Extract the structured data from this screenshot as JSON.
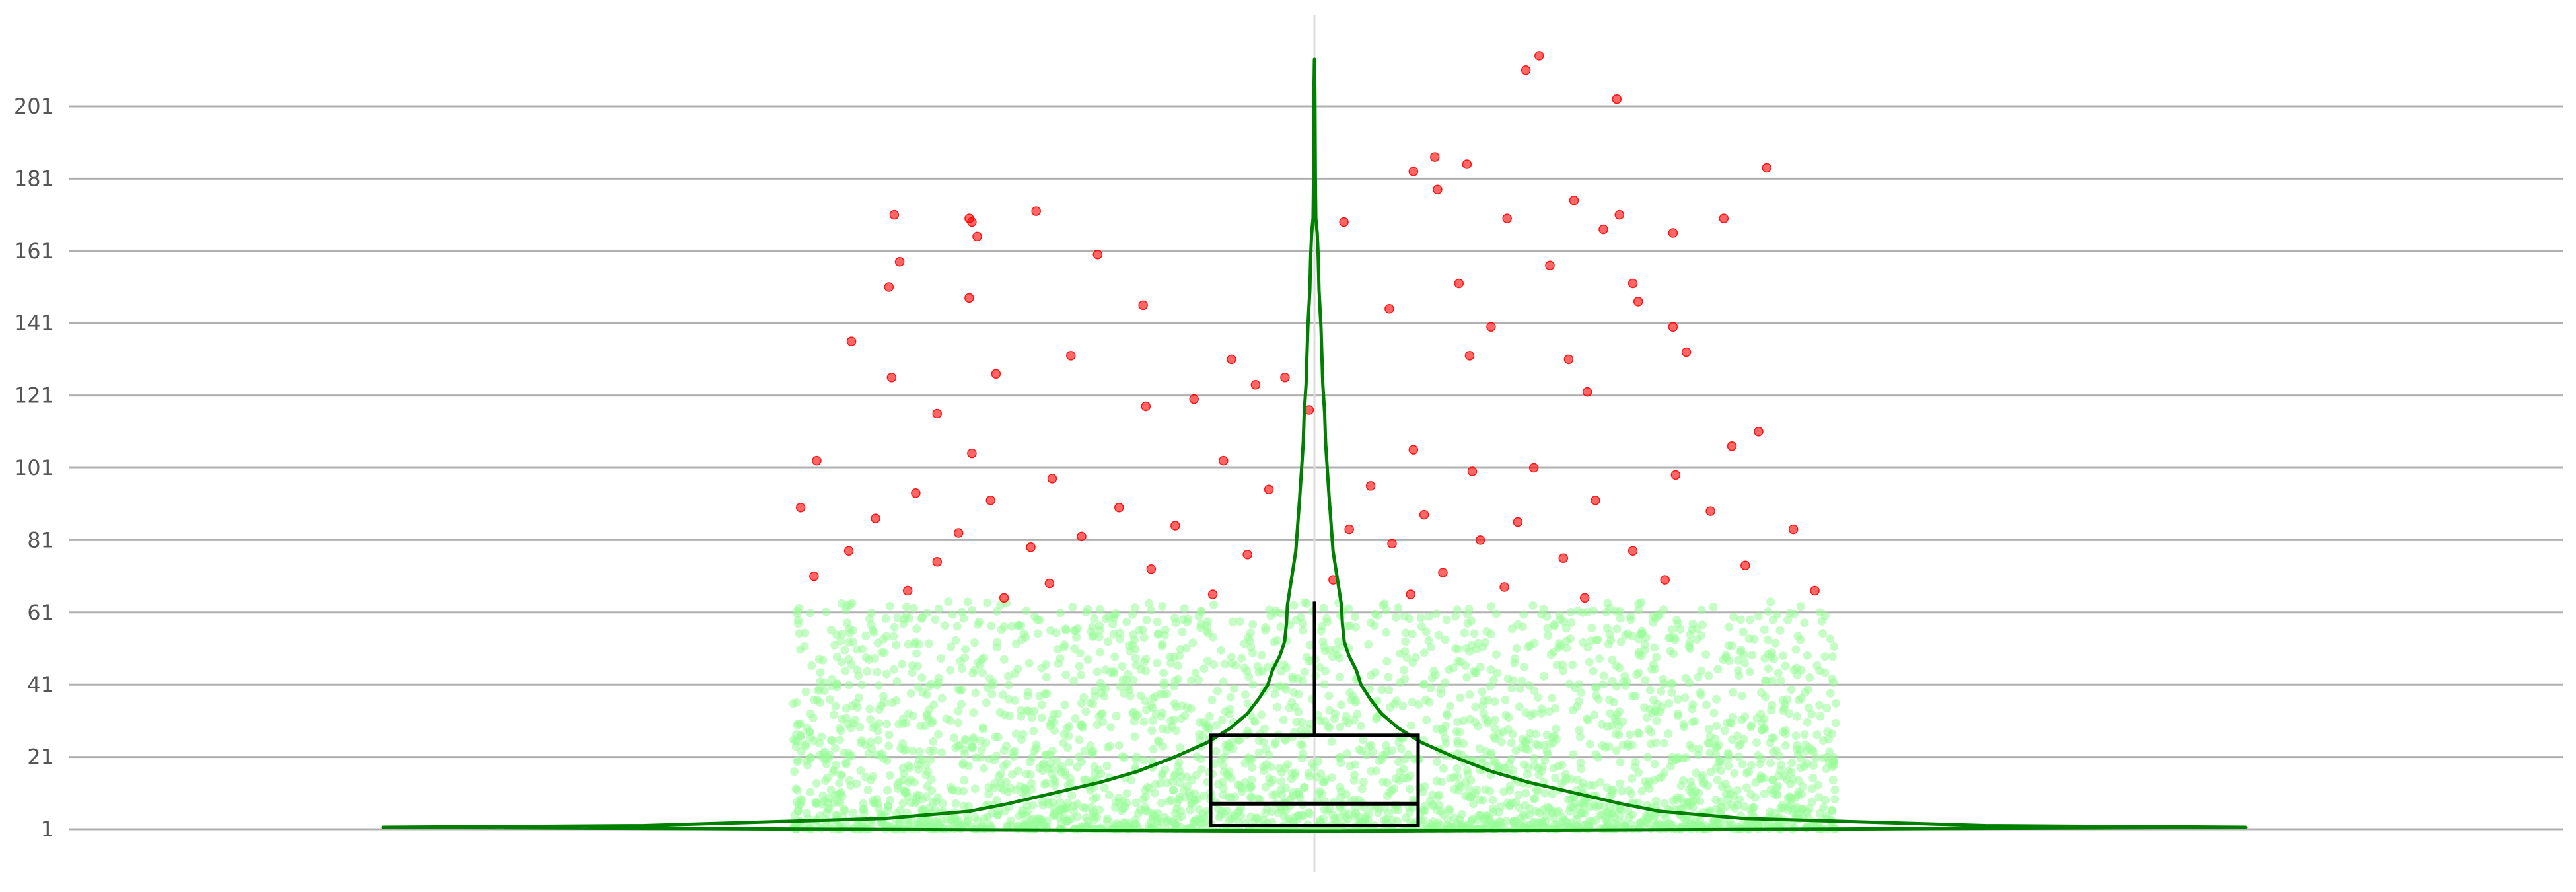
{
  "chart_data": {
    "type": "scatter",
    "title": "",
    "xlabel": "",
    "ylabel": "",
    "ylim": [
      1,
      225
    ],
    "y_ticks": [
      1,
      21,
      41,
      61,
      81,
      101,
      121,
      141,
      161,
      181,
      201
    ],
    "y_tick_labels": [
      "1",
      "21",
      "41",
      "61",
      "81",
      "101",
      "121",
      "141",
      "161",
      "181",
      "201"
    ],
    "grid": "horizontal",
    "colors": {
      "inlier_points": "#98fb98",
      "outlier_points": "#ff0000",
      "violin": "#008000",
      "box": "#000000",
      "grid": "#b0b0b0",
      "center_line": "#dddddd"
    },
    "box": {
      "q1": 2,
      "median": 8,
      "q3": 27,
      "whisker_low": 1,
      "whisker_high": 64
    },
    "violin": {
      "y_max": 214,
      "profile": [
        [
          1,
          1.0
        ],
        [
          2,
          0.72
        ],
        [
          4,
          0.46
        ],
        [
          6,
          0.37
        ],
        [
          8,
          0.33
        ],
        [
          11,
          0.28
        ],
        [
          14,
          0.23
        ],
        [
          17,
          0.19
        ],
        [
          21,
          0.15
        ],
        [
          25,
          0.115
        ],
        [
          29,
          0.09
        ],
        [
          33,
          0.072
        ],
        [
          37,
          0.06
        ],
        [
          41,
          0.05
        ],
        [
          45,
          0.045
        ],
        [
          49,
          0.037
        ],
        [
          53,
          0.032
        ],
        [
          58,
          0.03
        ],
        [
          63,
          0.029
        ],
        [
          68,
          0.026
        ],
        [
          73,
          0.023
        ],
        [
          78,
          0.02
        ],
        [
          85,
          0.018
        ],
        [
          92,
          0.016
        ],
        [
          100,
          0.014
        ],
        [
          108,
          0.012
        ],
        [
          116,
          0.011
        ],
        [
          124,
          0.009
        ],
        [
          132,
          0.008
        ],
        [
          140,
          0.007
        ],
        [
          150,
          0.005
        ],
        [
          160,
          0.004
        ],
        [
          166,
          0.003
        ],
        [
          170,
          0.0015
        ],
        [
          176,
          0.0012
        ],
        [
          182,
          0.001
        ],
        [
          195,
          0.0007
        ],
        [
          205,
          0.0005
        ],
        [
          214,
          0.0
        ]
      ]
    },
    "points": {
      "inlier_count": 3000,
      "inlier_range": [
        1,
        64
      ],
      "outliers": [
        [
          0.84,
          215
        ],
        [
          0.79,
          211
        ],
        [
          1.13,
          203
        ],
        [
          0.45,
          187
        ],
        [
          0.57,
          185
        ],
        [
          0.37,
          183
        ],
        [
          -1.57,
          171
        ],
        [
          -1.29,
          170
        ],
        [
          -1.28,
          169
        ],
        [
          1.14,
          171
        ],
        [
          -1.04,
          172
        ],
        [
          0.97,
          175
        ],
        [
          0.72,
          170
        ],
        [
          0.11,
          169
        ],
        [
          1.53,
          170
        ],
        [
          0.46,
          178
        ],
        [
          1.69,
          184
        ],
        [
          -1.26,
          165
        ],
        [
          -1.55,
          158
        ],
        [
          -0.81,
          160
        ],
        [
          1.08,
          167
        ],
        [
          1.34,
          166
        ],
        [
          0.88,
          157
        ],
        [
          -1.59,
          151
        ],
        [
          -1.29,
          148
        ],
        [
          1.19,
          152
        ],
        [
          0.54,
          152
        ],
        [
          -0.64,
          146
        ],
        [
          1.34,
          140
        ],
        [
          1.21,
          147
        ],
        [
          0.28,
          145
        ],
        [
          0.66,
          140
        ],
        [
          0.58,
          132
        ],
        [
          -0.91,
          132
        ],
        [
          -1.73,
          136
        ],
        [
          0.95,
          131
        ],
        [
          -1.19,
          127
        ],
        [
          -1.58,
          126
        ],
        [
          -0.31,
          131
        ],
        [
          -0.22,
          124
        ],
        [
          1.39,
          133
        ],
        [
          -0.63,
          118
        ],
        [
          -1.41,
          116
        ],
        [
          -0.11,
          126
        ],
        [
          1.02,
          122
        ],
        [
          -1.28,
          105
        ],
        [
          1.66,
          111
        ],
        [
          0.59,
          100
        ],
        [
          -0.45,
          120
        ],
        [
          -0.02,
          117
        ],
        [
          0.37,
          106
        ],
        [
          -1.86,
          103
        ],
        [
          1.56,
          107
        ],
        [
          0.82,
          101
        ],
        [
          -0.98,
          98
        ],
        [
          -0.34,
          103
        ],
        [
          0.21,
          96
        ],
        [
          -1.49,
          94
        ],
        [
          1.35,
          99
        ],
        [
          -0.73,
          90
        ],
        [
          -1.21,
          92
        ],
        [
          0.41,
          88
        ],
        [
          1.05,
          92
        ],
        [
          -1.92,
          90
        ],
        [
          -0.17,
          95
        ],
        [
          0.76,
          86
        ],
        [
          -1.64,
          87
        ],
        [
          1.48,
          89
        ],
        [
          -0.52,
          85
        ],
        [
          0.13,
          84
        ],
        [
          -1.33,
          83
        ],
        [
          1.79,
          84
        ],
        [
          -0.87,
          82
        ],
        [
          0.62,
          81
        ],
        [
          -1.06,
          79
        ],
        [
          0.29,
          80
        ],
        [
          1.19,
          78
        ],
        [
          -1.74,
          78
        ],
        [
          -0.25,
          77
        ],
        [
          0.93,
          76
        ],
        [
          -1.41,
          75
        ],
        [
          1.61,
          74
        ],
        [
          -0.61,
          73
        ],
        [
          0.48,
          72
        ],
        [
          -1.87,
          71
        ],
        [
          0.07,
          70
        ],
        [
          1.31,
          70
        ],
        [
          -0.99,
          69
        ],
        [
          0.71,
          68
        ],
        [
          -1.52,
          67
        ],
        [
          1.87,
          67
        ],
        [
          -0.38,
          66
        ],
        [
          0.36,
          66
        ],
        [
          -1.16,
          65
        ],
        [
          1.01,
          65
        ]
      ]
    }
  }
}
